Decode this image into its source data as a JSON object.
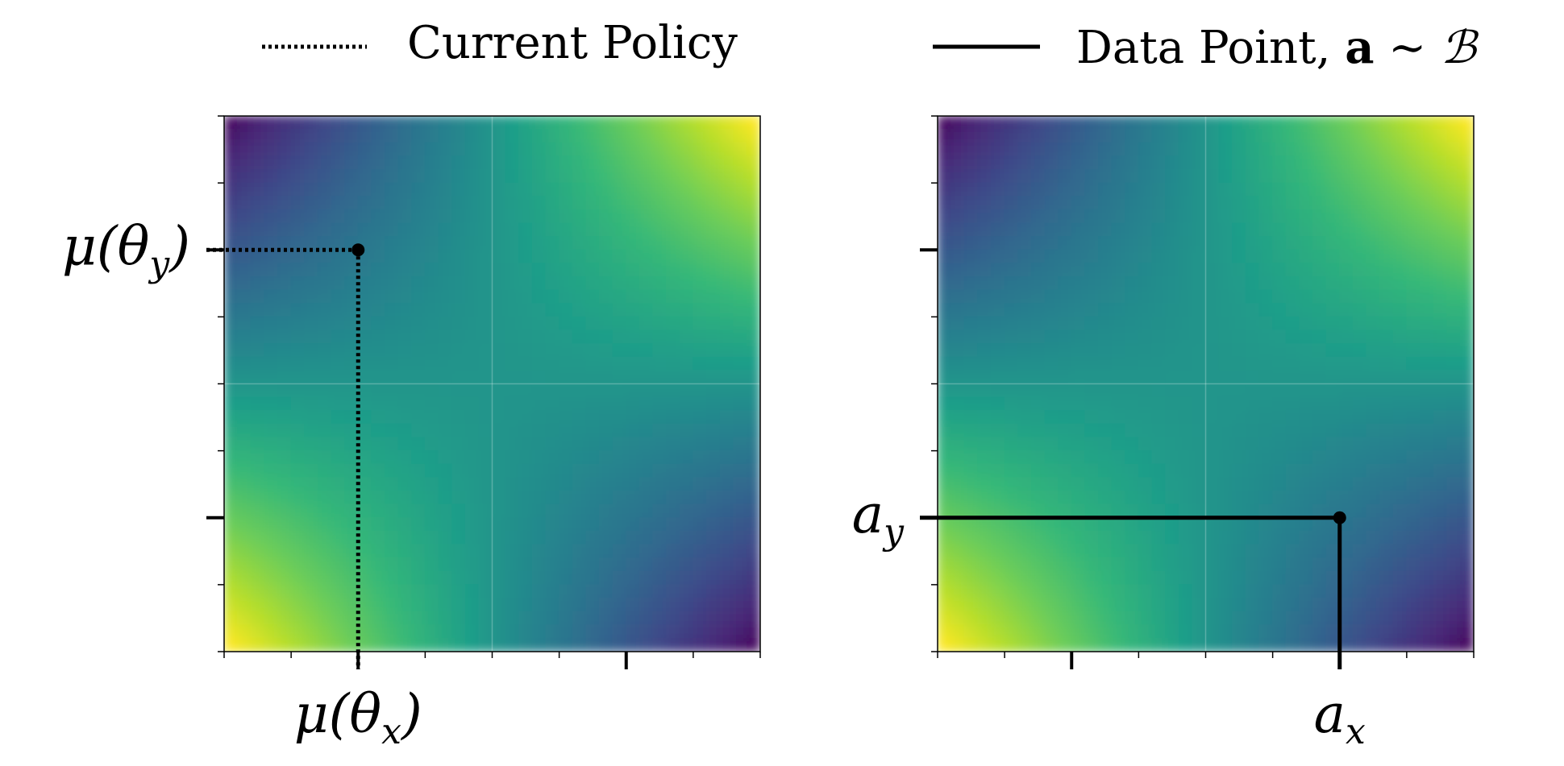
{
  "legend": {
    "placement": "top",
    "entries": [
      {
        "label": "Current Policy",
        "style": "dotted"
      },
      {
        "label_prefix": "Data Point, ",
        "label_bold": "a",
        "label_rel": " ∼ ",
        "label_set": "ℬ",
        "style": "solid"
      }
    ]
  },
  "chart_data": [
    {
      "type": "heatmap",
      "colormap": "viridis",
      "xlim": [
        0,
        4
      ],
      "ylim": [
        0,
        4
      ],
      "grid": true,
      "surface": "high at bottom-left and top-right corners, low at top-left and bottom-right corners",
      "major_xticks": [
        1,
        3
      ],
      "major_yticks": [
        1,
        3
      ],
      "minor_ticks": [
        0,
        0.5,
        1.5,
        2,
        2.5,
        3.5,
        4
      ],
      "point": {
        "x": 1,
        "y": 3
      },
      "guide_style": "dotted",
      "xtick_label": {
        "tick": 1,
        "text": "μ(θ",
        "sub": "x",
        "close": ")"
      },
      "ytick_label": {
        "tick": 3,
        "text": "μ(θ",
        "sub": "y",
        "close": ")"
      }
    },
    {
      "type": "heatmap",
      "colormap": "viridis",
      "xlim": [
        0,
        4
      ],
      "ylim": [
        0,
        4
      ],
      "grid": true,
      "surface": "high at bottom-left and top-right corners, low at top-left and bottom-right corners",
      "major_xticks": [
        1,
        3
      ],
      "major_yticks": [
        1,
        3
      ],
      "minor_ticks": [
        0,
        0.5,
        1.5,
        2,
        2.5,
        3.5,
        4
      ],
      "point": {
        "x": 3,
        "y": 1
      },
      "guide_style": "solid",
      "xtick_label": {
        "tick": 3,
        "text": "a",
        "sub": "x",
        "close": ""
      },
      "ytick_label": {
        "tick": 1,
        "text": "a",
        "sub": "y",
        "close": ""
      }
    }
  ]
}
